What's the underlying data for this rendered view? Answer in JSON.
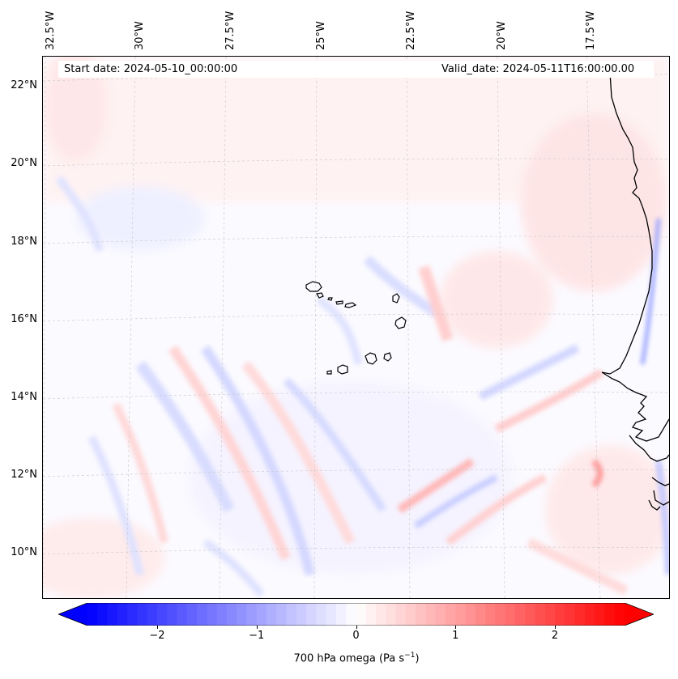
{
  "map": {
    "start_date": "Start date: 2024-05-10_00:00:00",
    "valid_date": "Valid_date: 2024-05-11T16:00:00.00",
    "lon_labels": [
      "32.5°W",
      "30°W",
      "27.5°W",
      "25°W",
      "22.5°W",
      "20°W",
      "17.5°W"
    ],
    "lat_labels": [
      "22°N",
      "20°N",
      "18°N",
      "16°N",
      "14°N",
      "12°N",
      "10°N"
    ],
    "field": "700 hPa omega",
    "colors": {
      "negative": "#0000ff",
      "zero": "#ffffff",
      "positive": "#ff0000",
      "coast": "#000000",
      "grid": "#bbbbbb"
    }
  },
  "colorbar": {
    "label_main": "700 hPa omega (Pa s",
    "label_exp": "−1",
    "label_end": ")",
    "ticks": [
      "−2",
      "−1",
      "0",
      "1",
      "2"
    ],
    "range": [
      -2.7,
      2.7
    ],
    "tick_values": [
      -2,
      -1,
      0,
      1,
      2
    ]
  }
}
